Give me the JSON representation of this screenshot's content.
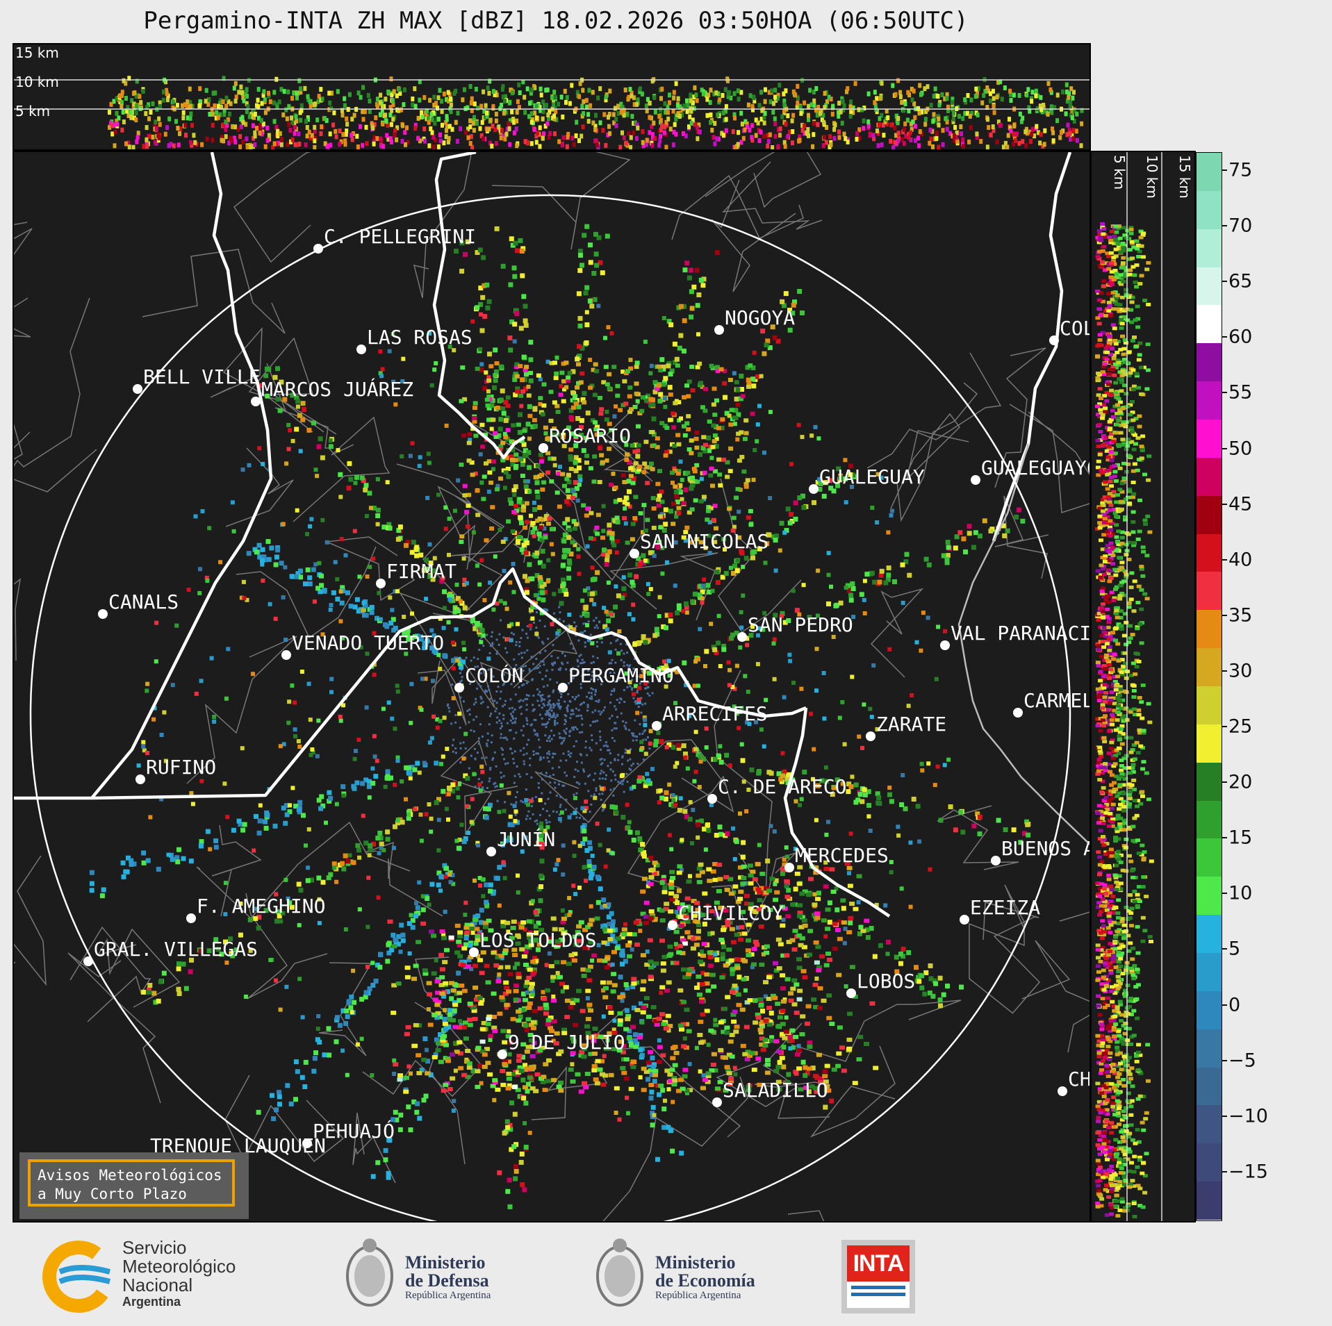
{
  "title": "Pergamino-INTA ZH MAX [dBZ] 18.02.2026 03:50HOA (06:50UTC)",
  "top_panel": {
    "heights": [
      "15 km",
      "10 km",
      "5 km"
    ]
  },
  "right_panel": {
    "heights": [
      "5 km",
      "10 km",
      "15 km"
    ]
  },
  "colorbar": {
    "ticks": [
      "75",
      "70",
      "65",
      "60",
      "55",
      "50",
      "45",
      "40",
      "35",
      "30",
      "25",
      "20",
      "15",
      "10",
      "5",
      "0",
      "−5",
      "−10",
      "−15"
    ],
    "bands": [
      {
        "color": "#3a3d6e"
      },
      {
        "color": "#3d4a7a"
      },
      {
        "color": "#3f5685"
      },
      {
        "color": "#3a6a94"
      },
      {
        "color": "#3978a5"
      },
      {
        "color": "#2f88bd"
      },
      {
        "color": "#2a9ccc"
      },
      {
        "color": "#26b2de"
      },
      {
        "color": "#4fe84b"
      },
      {
        "color": "#3cc73a"
      },
      {
        "color": "#2f9f2d"
      },
      {
        "color": "#277f25"
      },
      {
        "color": "#f0f030"
      },
      {
        "color": "#cfd030"
      },
      {
        "color": "#d6a820"
      },
      {
        "color": "#e58a12"
      },
      {
        "color": "#f03040"
      },
      {
        "color": "#d4101d"
      },
      {
        "color": "#a00010"
      },
      {
        "color": "#cf0060"
      },
      {
        "color": "#ff10d0"
      },
      {
        "color": "#c010c0"
      },
      {
        "color": "#8f0da0"
      },
      {
        "color": "#ffffff"
      },
      {
        "color": "#d8f5ec"
      },
      {
        "color": "#b0eed8"
      },
      {
        "color": "#8fe2c3"
      },
      {
        "color": "#7dd7b0"
      }
    ]
  },
  "cities": [
    {
      "name": "C. PELLEGRINI"
    },
    {
      "name": "LAS ROSAS"
    },
    {
      "name": "BELL VILLE"
    },
    {
      "name": "MARCOS JUÁREZ"
    },
    {
      "name": "NOGOYA"
    },
    {
      "name": "COLO"
    },
    {
      "name": "ROSARIO"
    },
    {
      "name": "GUALEGUAYC"
    },
    {
      "name": "GUALEGUAY"
    },
    {
      "name": "SAN NICOLAS"
    },
    {
      "name": "FIRMAT"
    },
    {
      "name": "CANALS"
    },
    {
      "name": "SAN PEDRO"
    },
    {
      "name": "VENADO TUERTO"
    },
    {
      "name": "VAL PARANACIT"
    },
    {
      "name": "COLÓN"
    },
    {
      "name": "PERGAMINO"
    },
    {
      "name": "CARMELO"
    },
    {
      "name": "ARRECIFES"
    },
    {
      "name": "ZARATE"
    },
    {
      "name": "RUFINO"
    },
    {
      "name": "C. DE ARECO"
    },
    {
      "name": "JUNÍN"
    },
    {
      "name": "BUENOS A"
    },
    {
      "name": "MERCEDES"
    },
    {
      "name": "F. AMEGHINO"
    },
    {
      "name": "EZEIZA"
    },
    {
      "name": "CHIVILCOY"
    },
    {
      "name": "GRAL. VILLEGAS"
    },
    {
      "name": "LOS TOLDOS"
    },
    {
      "name": "LOBOS"
    },
    {
      "name": "9 DE JULIO"
    },
    {
      "name": "CHA"
    },
    {
      "name": "SALADILLO"
    },
    {
      "name": "PEHUAJÓ"
    },
    {
      "name": "TRENQUE LAUQUEN"
    }
  ],
  "warning_box": {
    "text": "Avisos Meteorológicos\na Muy Corto Plazo"
  },
  "logos": {
    "smn": {
      "line1": "Servicio",
      "line2": "Meteorológico",
      "line3": "Nacional",
      "line4": "Argentina",
      "color": "#f5a800"
    },
    "defensa": {
      "line1": "Ministerio",
      "line2": "de Defensa",
      "line3": "República Argentina"
    },
    "economia": {
      "line1": "Ministerio",
      "line2": "de Economía",
      "line3": "República Argentina"
    },
    "inta": {
      "text": "INTA",
      "color": "#e2231a"
    }
  }
}
